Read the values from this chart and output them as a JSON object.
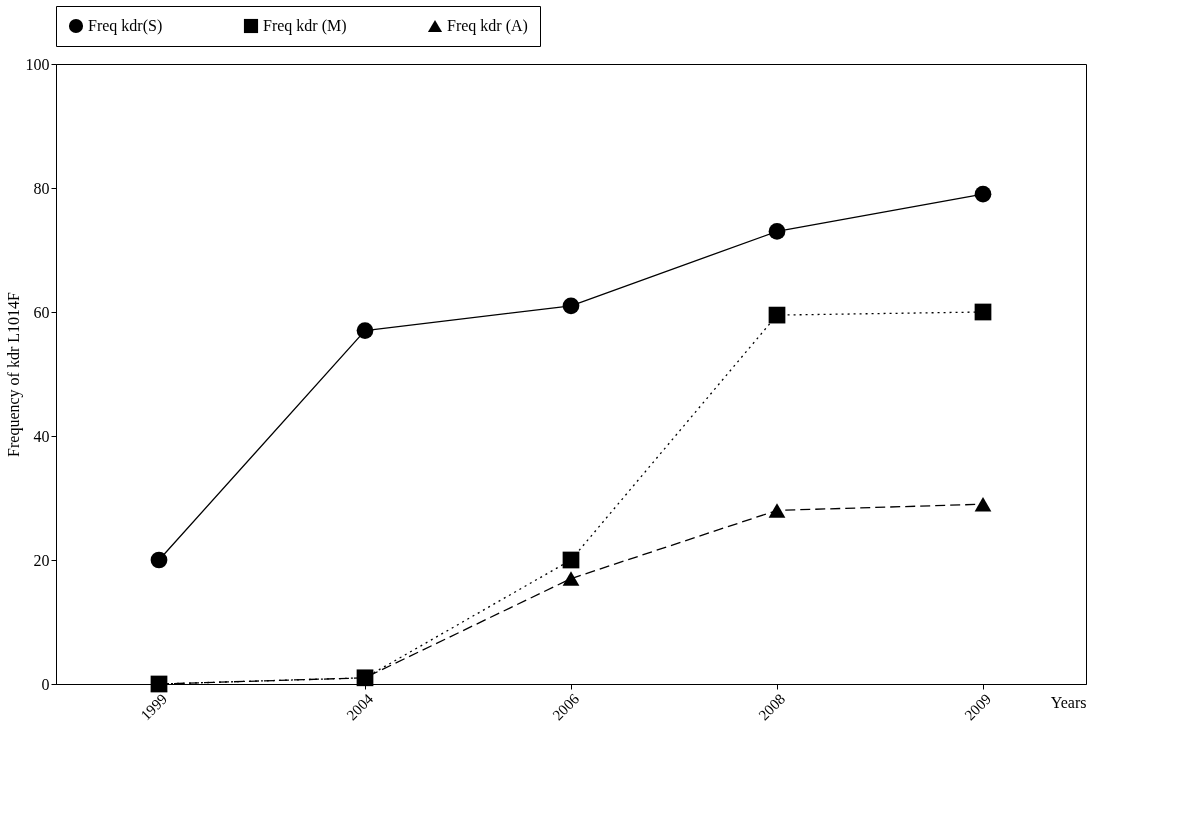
{
  "chart_data": {
    "type": "line",
    "xlabel": "Years",
    "ylabel": "Frequency of kdr L1014F",
    "categories": [
      "1999",
      "2004",
      "2006",
      "2008",
      "2009"
    ],
    "series": [
      {
        "name": "Freq kdr(S)",
        "color": "#000000",
        "marker": "circle",
        "line_style": "solid",
        "values": [
          20,
          57,
          61,
          73,
          79
        ]
      },
      {
        "name": "Freq kdr (M)",
        "color": "#000000",
        "marker": "square",
        "line_style": "dotted",
        "values": [
          0,
          1,
          20,
          59.5,
          60
        ]
      },
      {
        "name": "Freq kdr (A)",
        "color": "#000000",
        "marker": "triangle",
        "line_style": "dashed",
        "values": [
          0,
          1,
          17,
          28,
          29
        ]
      }
    ],
    "ylim": [
      0,
      100
    ],
    "yticks": [
      0,
      20,
      40,
      60,
      80,
      100
    ],
    "grid": false,
    "legend": "top"
  }
}
